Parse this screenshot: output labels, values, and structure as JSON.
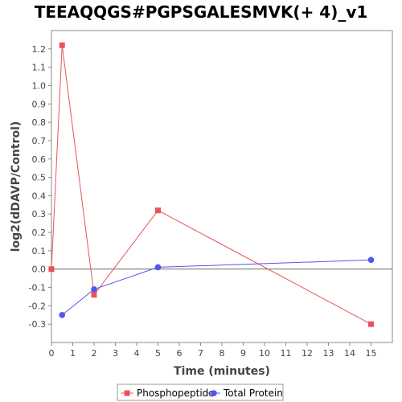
{
  "chart_data": {
    "type": "line",
    "title": "TEEAQQGS#PGPSGALESMVK(+ 4)_v1",
    "xlabel": "Time (minutes)",
    "ylabel": "log2(dDAVP/Control)",
    "xlim": [
      0,
      16
    ],
    "ylim": [
      -0.4,
      1.3
    ],
    "xticks": [
      0,
      1,
      2,
      3,
      4,
      5,
      6,
      7,
      8,
      9,
      10,
      11,
      12,
      13,
      14,
      15
    ],
    "yticks": [
      -0.3,
      -0.2,
      -0.1,
      0.0,
      0.1,
      0.2,
      0.3,
      0.4,
      0.5,
      0.6,
      0.7,
      0.8,
      0.9,
      1.0,
      1.1,
      1.2
    ],
    "ytick_labels": [
      "-0.3",
      "-0.2",
      "-0.1",
      "0.0",
      "0.1",
      "0.2",
      "0.3",
      "0.4",
      "0.5",
      "0.6",
      "0.7",
      "0.8",
      "0.9",
      "1.0",
      "1.1",
      "1.2"
    ],
    "grid": false,
    "legend_position": "bottom",
    "series": [
      {
        "name": "Phosphopeptide",
        "color": "#e8545a",
        "marker": "square",
        "x": [
          0,
          0.5,
          2,
          5,
          15
        ],
        "y": [
          0.0,
          1.22,
          -0.14,
          0.32,
          -0.3
        ]
      },
      {
        "name": "Total Protein",
        "color": "#5555ee",
        "marker": "circle",
        "x": [
          0.5,
          2,
          5,
          15
        ],
        "y": [
          -0.25,
          -0.11,
          0.01,
          0.05
        ]
      }
    ]
  }
}
